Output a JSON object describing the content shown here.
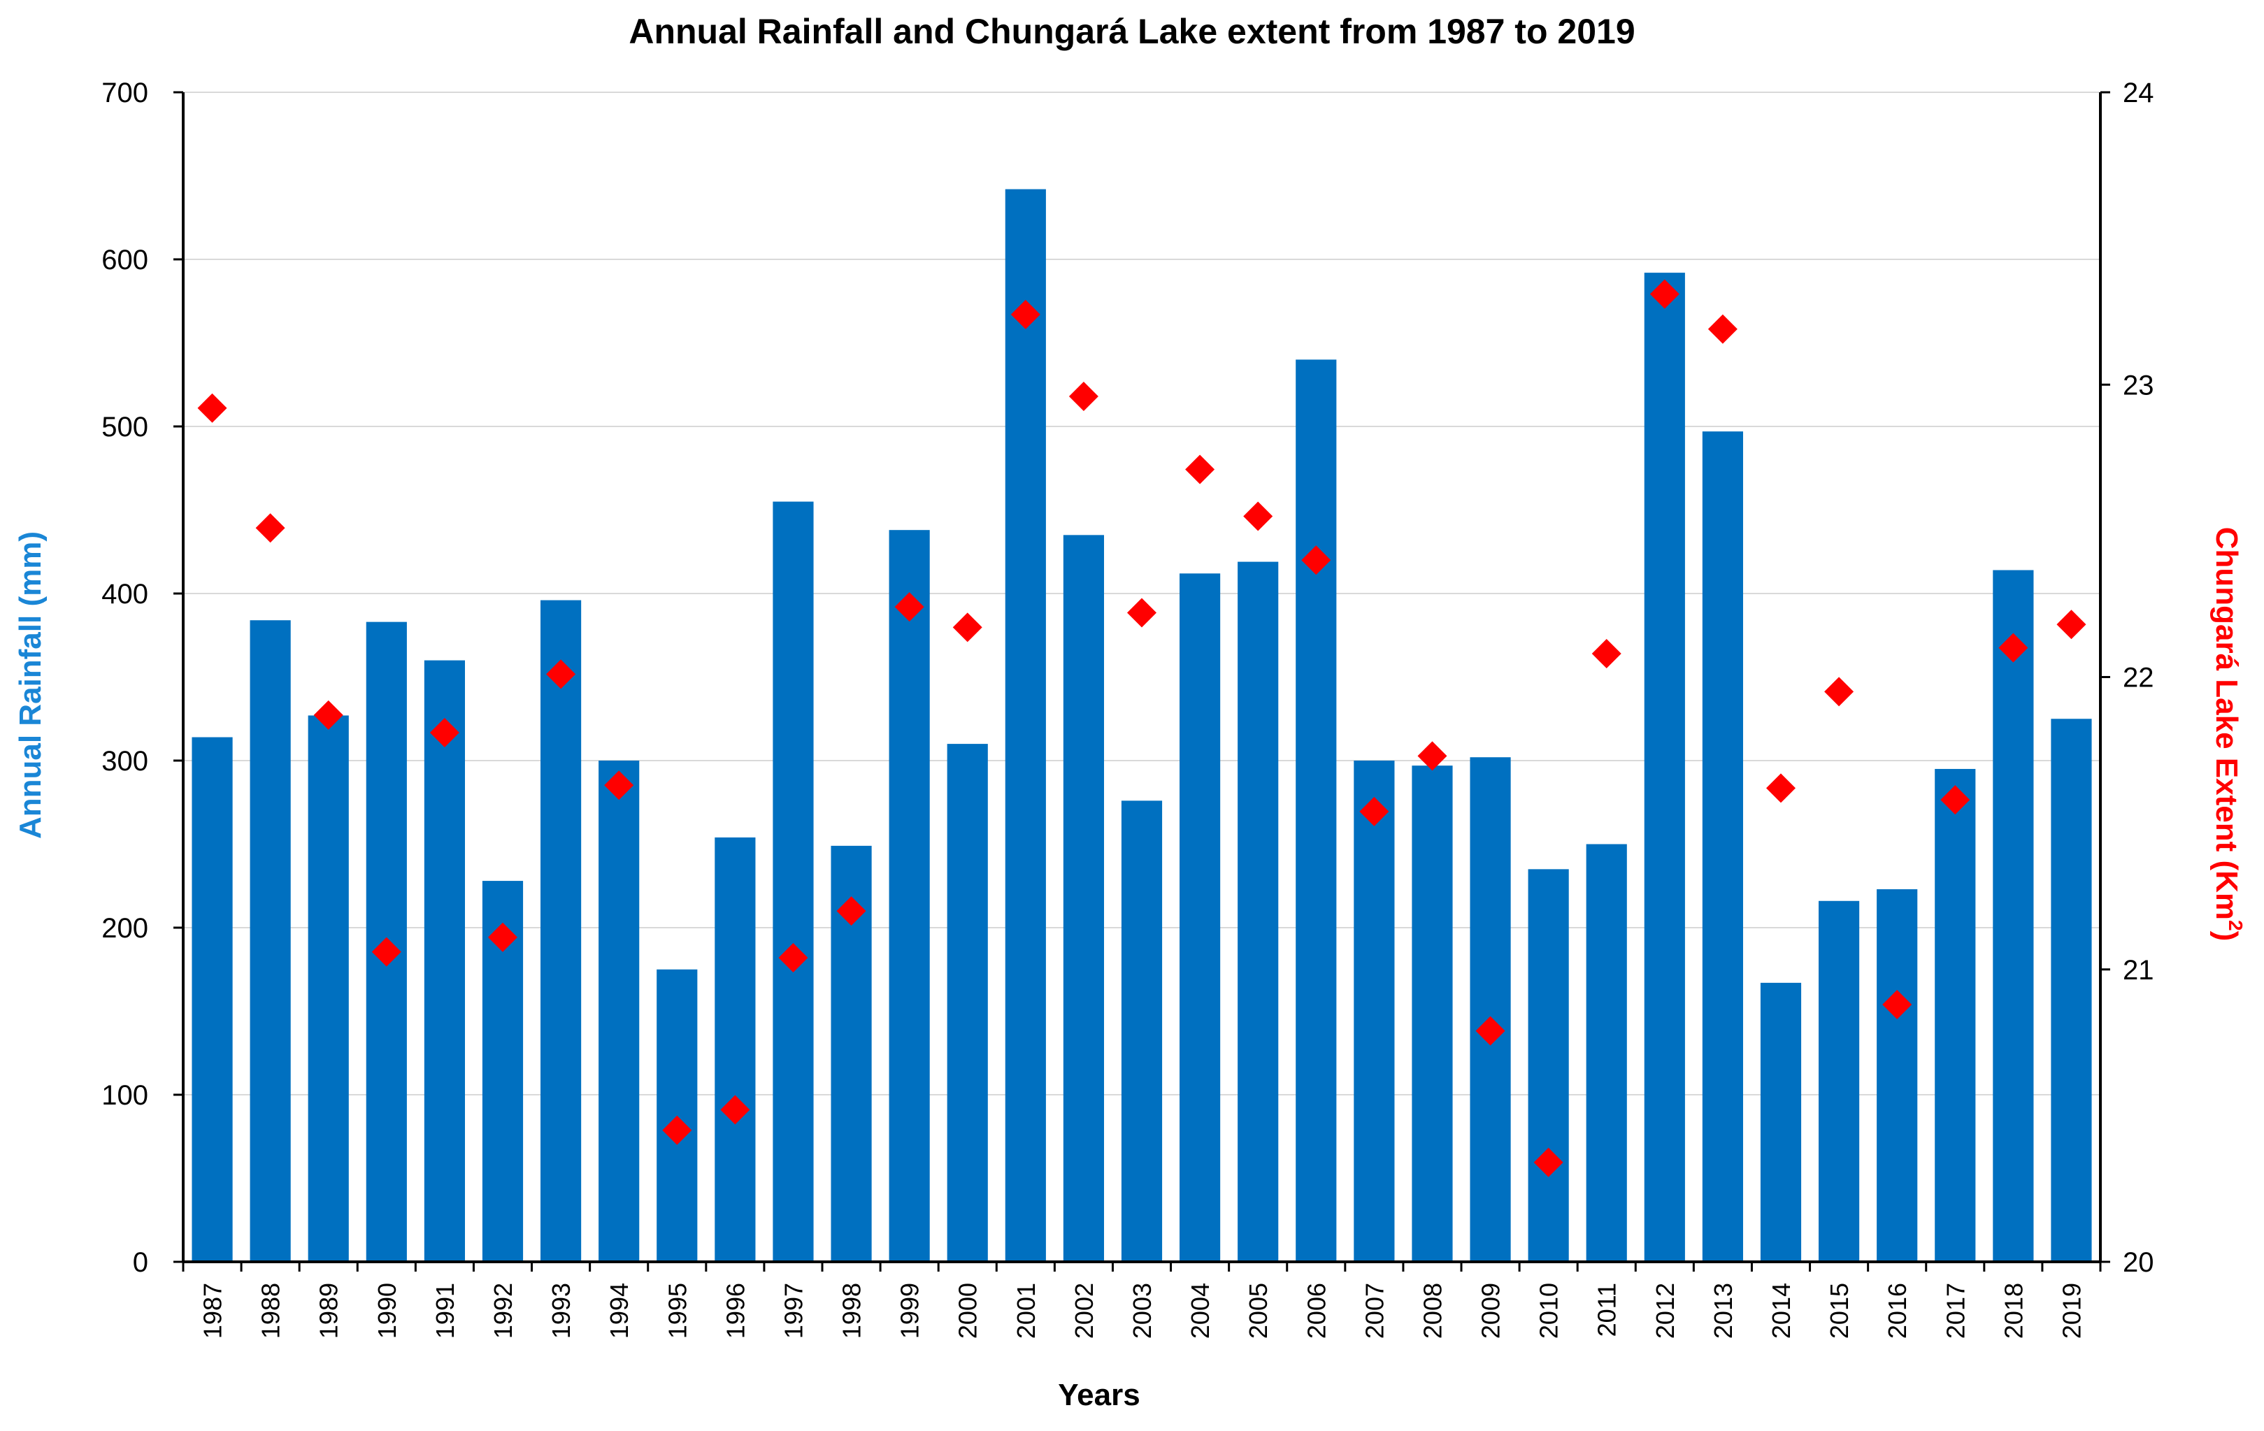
{
  "colors": {
    "bar": "#0070c0",
    "marker": "#ff0000",
    "left_axis_title": "#1a86d6",
    "right_axis_title": "#ff0000",
    "grid": "#d9d9d9",
    "axis": "#000000"
  },
  "chart_data": {
    "type": "bar",
    "title": "Annual Rainfall and Chungará Lake extent from 1987 to 2019",
    "xlabel": "Years",
    "ylabel": "Annual Rainfall (mm)",
    "y2label_main": "Chungará Lake Extent (Km",
    "y2label_sup": "2",
    "y2label_end": ")",
    "ylim": [
      0,
      700
    ],
    "yticks": [
      "0",
      "100",
      "200",
      "300",
      "400",
      "500",
      "600",
      "700"
    ],
    "y2lim": [
      20,
      24
    ],
    "y2ticks": [
      "20",
      "21",
      "22",
      "23",
      "24"
    ],
    "grid": true,
    "categories": [
      "1987",
      "1988",
      "1989",
      "1990",
      "1991",
      "1992",
      "1993",
      "1994",
      "1995",
      "1996",
      "1997",
      "1998",
      "1999",
      "2000",
      "2001",
      "2002",
      "2003",
      "2004",
      "2005",
      "2006",
      "2007",
      "2008",
      "2009",
      "2010",
      "2011",
      "2012",
      "2013",
      "2014",
      "2015",
      "2016",
      "2017",
      "2018",
      "2019"
    ],
    "series": [
      {
        "name": "Annual Rainfall (mm)",
        "type": "bar",
        "axis": "left",
        "values": [
          314,
          384,
          327,
          383,
          360,
          228,
          396,
          300,
          175,
          254,
          455,
          249,
          438,
          310,
          642,
          435,
          276,
          412,
          419,
          540,
          300,
          297,
          302,
          235,
          250,
          592,
          497,
          167,
          216,
          223,
          295,
          414,
          325
        ]
      },
      {
        "name": "Chungará Lake Extent (Km2)",
        "type": "scatter",
        "marker": "diamond",
        "axis": "right",
        "values": [
          22.92,
          22.51,
          21.87,
          21.06,
          21.81,
          21.11,
          22.01,
          21.63,
          20.45,
          20.52,
          21.04,
          21.2,
          22.24,
          22.17,
          23.24,
          22.96,
          22.22,
          22.71,
          22.55,
          22.4,
          21.54,
          21.73,
          20.79,
          20.34,
          22.08,
          23.31,
          23.19,
          21.62,
          21.95,
          20.88,
          21.58,
          22.1,
          22.18
        ]
      }
    ]
  }
}
